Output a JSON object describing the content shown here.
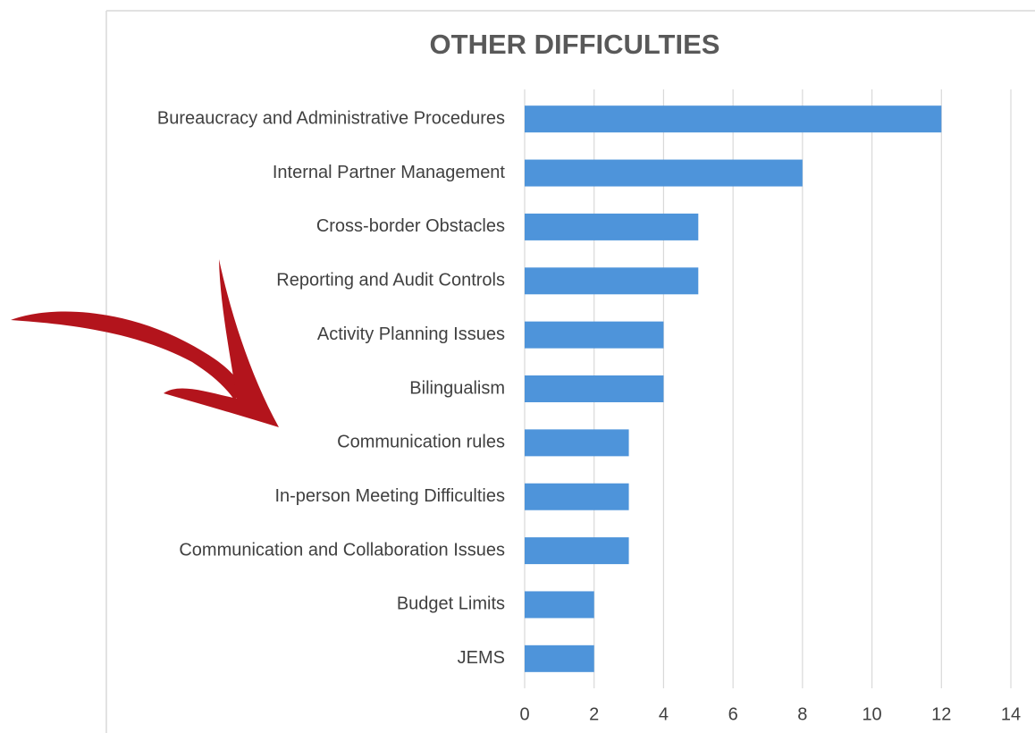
{
  "chart_data": {
    "type": "bar",
    "orientation": "horizontal",
    "title": "OTHER DIFFICULTIES",
    "categories": [
      "Bureaucracy and Administrative Procedures",
      "Internal Partner Management",
      "Cross-border Obstacles",
      "Reporting and Audit Controls",
      "Activity Planning Issues",
      "Bilingualism",
      "Communication rules",
      "In-person Meeting Difficulties",
      "Communication and Collaboration Issues",
      "Budget Limits",
      "JEMS"
    ],
    "values": [
      12,
      8,
      5,
      5,
      4,
      4,
      3,
      3,
      3,
      2,
      2
    ],
    "color": "#4e94da",
    "xlim": [
      0,
      14
    ],
    "xticks": [
      0,
      2,
      4,
      6,
      8,
      10,
      12,
      14
    ],
    "grid": true
  }
}
